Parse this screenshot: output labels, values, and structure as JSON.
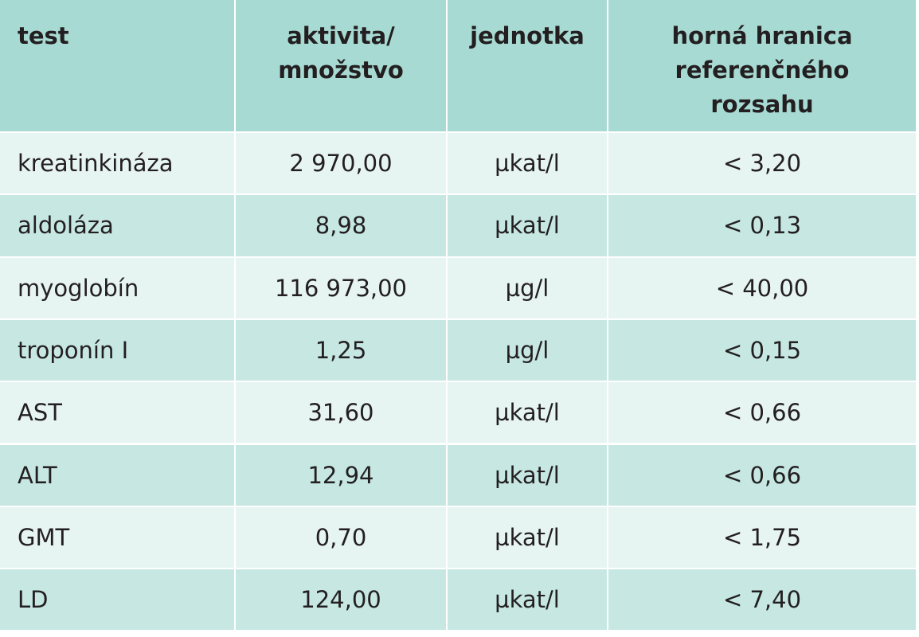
{
  "table": {
    "header": [
      [
        "test"
      ],
      [
        "aktivita/",
        "množstvo"
      ],
      [
        "jednotka"
      ],
      [
        "horná hranica",
        "referenčného",
        "rozsahu"
      ]
    ],
    "rows": [
      [
        "kreatinkináza",
        "2 970,00",
        "µkat/l",
        "< 3,20"
      ],
      [
        "aldoláza",
        "8,98",
        "µkat/l",
        "< 0,13"
      ],
      [
        "myoglobín",
        "116 973,00",
        "µg/l",
        "< 40,00"
      ],
      [
        "troponín I",
        "1,25",
        "µg/l",
        "< 0,15"
      ],
      [
        "AST",
        "31,60",
        "µkat/l",
        "< 0,66"
      ],
      [
        "ALT",
        "12,94",
        "µkat/l",
        "< 0,66"
      ],
      [
        "GMT",
        "0,70",
        "µkat/l",
        "< 1,75"
      ],
      [
        "LD",
        "124,00",
        "µkat/l",
        "< 7,40"
      ]
    ]
  }
}
